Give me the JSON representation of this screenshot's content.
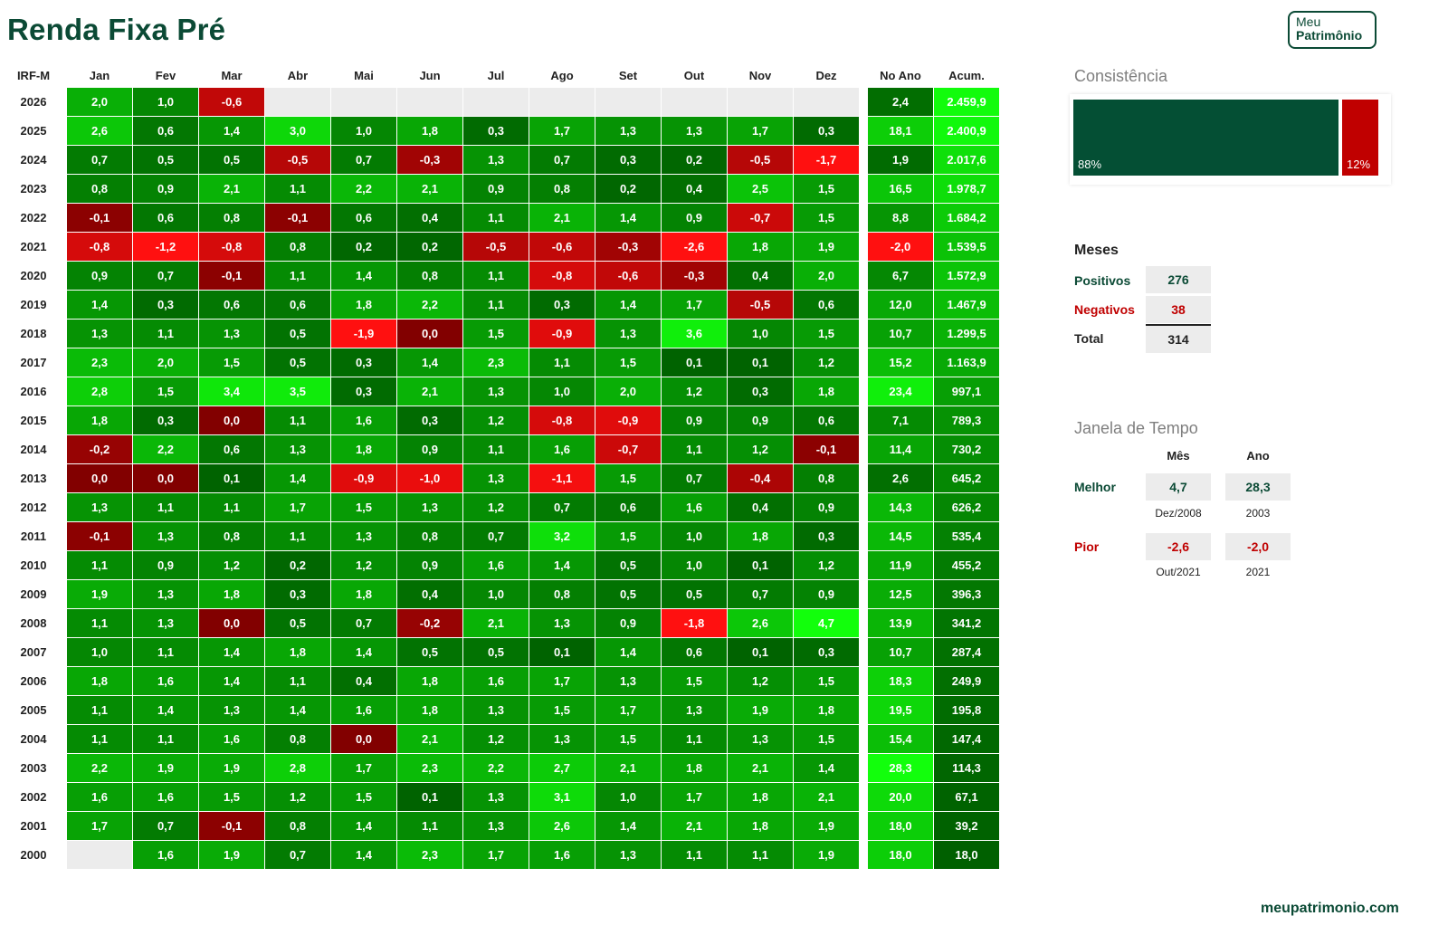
{
  "title": "Renda Fixa Pré",
  "logo": {
    "line1": "Meu",
    "line2": "Patrimônio"
  },
  "footer": "meupatrimonio.com",
  "colors": {
    "brand": "#0b4a35",
    "negative": "#c00000",
    "positive_dark": "#006100",
    "positive_bright": "#00ff00"
  },
  "chart_data": {
    "type": "heatmap",
    "corner_label": "IRF-M",
    "months": [
      "Jan",
      "Fev",
      "Mar",
      "Abr",
      "Mai",
      "Jun",
      "Jul",
      "Ago",
      "Set",
      "Out",
      "Nov",
      "Dez"
    ],
    "year_col_label": "No Ano",
    "acc_col_label": "Acum.",
    "rows": [
      {
        "year": "2026",
        "m": [
          "2,0",
          "1,0",
          "-0,6",
          "",
          "",
          "",
          "",
          "",
          "",
          "",
          "",
          ""
        ],
        "ano": "2,4",
        "acum": "2.459,9"
      },
      {
        "year": "2025",
        "m": [
          "2,6",
          "0,6",
          "1,4",
          "3,0",
          "1,0",
          "1,8",
          "0,3",
          "1,7",
          "1,3",
          "1,3",
          "1,7",
          "0,3"
        ],
        "ano": "18,1",
        "acum": "2.400,9"
      },
      {
        "year": "2024",
        "m": [
          "0,7",
          "0,5",
          "0,5",
          "-0,5",
          "0,7",
          "-0,3",
          "1,3",
          "0,7",
          "0,3",
          "0,2",
          "-0,5",
          "-1,7"
        ],
        "ano": "1,9",
        "acum": "2.017,6"
      },
      {
        "year": "2023",
        "m": [
          "0,8",
          "0,9",
          "2,1",
          "1,1",
          "2,2",
          "2,1",
          "0,9",
          "0,8",
          "0,2",
          "0,4",
          "2,5",
          "1,5"
        ],
        "ano": "16,5",
        "acum": "1.978,7"
      },
      {
        "year": "2022",
        "m": [
          "-0,1",
          "0,6",
          "0,8",
          "-0,1",
          "0,6",
          "0,4",
          "1,1",
          "2,1",
          "1,4",
          "0,9",
          "-0,7",
          "1,5"
        ],
        "ano": "8,8",
        "acum": "1.684,2"
      },
      {
        "year": "2021",
        "m": [
          "-0,8",
          "-1,2",
          "-0,8",
          "0,8",
          "0,2",
          "0,2",
          "-0,5",
          "-0,6",
          "-0,3",
          "-2,6",
          "1,8",
          "1,9"
        ],
        "ano": "-2,0",
        "acum": "1.539,5"
      },
      {
        "year": "2020",
        "m": [
          "0,9",
          "0,7",
          "-0,1",
          "1,1",
          "1,4",
          "0,8",
          "1,1",
          "-0,8",
          "-0,6",
          "-0,3",
          "0,4",
          "2,0"
        ],
        "ano": "6,7",
        "acum": "1.572,9"
      },
      {
        "year": "2019",
        "m": [
          "1,4",
          "0,3",
          "0,6",
          "0,6",
          "1,8",
          "2,2",
          "1,1",
          "0,3",
          "1,4",
          "1,7",
          "-0,5",
          "0,6"
        ],
        "ano": "12,0",
        "acum": "1.467,9"
      },
      {
        "year": "2018",
        "m": [
          "1,3",
          "1,1",
          "1,3",
          "0,5",
          "-1,9",
          "0,0",
          "1,5",
          "-0,9",
          "1,3",
          "3,6",
          "1,0",
          "1,5"
        ],
        "ano": "10,7",
        "acum": "1.299,5"
      },
      {
        "year": "2017",
        "m": [
          "2,3",
          "2,0",
          "1,5",
          "0,5",
          "0,3",
          "1,4",
          "2,3",
          "1,1",
          "1,5",
          "0,1",
          "0,1",
          "1,2"
        ],
        "ano": "15,2",
        "acum": "1.163,9"
      },
      {
        "year": "2016",
        "m": [
          "2,8",
          "1,5",
          "3,4",
          "3,5",
          "0,3",
          "2,1",
          "1,3",
          "1,0",
          "2,0",
          "1,2",
          "0,3",
          "1,8"
        ],
        "ano": "23,4",
        "acum": "997,1"
      },
      {
        "year": "2015",
        "m": [
          "1,8",
          "0,3",
          "0,0",
          "1,1",
          "1,6",
          "0,3",
          "1,2",
          "-0,8",
          "-0,9",
          "0,9",
          "0,9",
          "0,6"
        ],
        "ano": "7,1",
        "acum": "789,3"
      },
      {
        "year": "2014",
        "m": [
          "-0,2",
          "2,2",
          "0,6",
          "1,3",
          "1,8",
          "0,9",
          "1,1",
          "1,6",
          "-0,7",
          "1,1",
          "1,2",
          "-0,1"
        ],
        "ano": "11,4",
        "acum": "730,2"
      },
      {
        "year": "2013",
        "m": [
          "0,0",
          "0,0",
          "0,1",
          "1,4",
          "-0,9",
          "-1,0",
          "1,3",
          "-1,1",
          "1,5",
          "0,7",
          "-0,4",
          "0,8"
        ],
        "ano": "2,6",
        "acum": "645,2"
      },
      {
        "year": "2012",
        "m": [
          "1,3",
          "1,1",
          "1,1",
          "1,7",
          "1,5",
          "1,3",
          "1,2",
          "0,7",
          "0,6",
          "1,6",
          "0,4",
          "0,9"
        ],
        "ano": "14,3",
        "acum": "626,2"
      },
      {
        "year": "2011",
        "m": [
          "-0,1",
          "1,3",
          "0,8",
          "1,1",
          "1,3",
          "0,8",
          "0,7",
          "3,2",
          "1,5",
          "1,0",
          "1,8",
          "0,3"
        ],
        "ano": "14,5",
        "acum": "535,4"
      },
      {
        "year": "2010",
        "m": [
          "1,1",
          "0,9",
          "1,2",
          "0,2",
          "1,2",
          "0,9",
          "1,6",
          "1,4",
          "0,5",
          "1,0",
          "0,1",
          "1,2"
        ],
        "ano": "11,9",
        "acum": "455,2"
      },
      {
        "year": "2009",
        "m": [
          "1,9",
          "1,3",
          "1,8",
          "0,3",
          "1,8",
          "0,4",
          "1,0",
          "0,8",
          "0,5",
          "0,5",
          "0,7",
          "0,9"
        ],
        "ano": "12,5",
        "acum": "396,3"
      },
      {
        "year": "2008",
        "m": [
          "1,1",
          "1,3",
          "0,0",
          "0,5",
          "0,7",
          "-0,2",
          "2,1",
          "1,3",
          "0,9",
          "-1,8",
          "2,6",
          "4,7"
        ],
        "ano": "13,9",
        "acum": "341,2"
      },
      {
        "year": "2007",
        "m": [
          "1,0",
          "1,1",
          "1,4",
          "1,8",
          "1,4",
          "0,5",
          "0,5",
          "0,1",
          "1,4",
          "0,6",
          "0,1",
          "0,3"
        ],
        "ano": "10,7",
        "acum": "287,4"
      },
      {
        "year": "2006",
        "m": [
          "1,8",
          "1,6",
          "1,4",
          "1,1",
          "0,4",
          "1,8",
          "1,6",
          "1,7",
          "1,3",
          "1,5",
          "1,2",
          "1,5"
        ],
        "ano": "18,3",
        "acum": "249,9"
      },
      {
        "year": "2005",
        "m": [
          "1,1",
          "1,4",
          "1,3",
          "1,4",
          "1,6",
          "1,8",
          "1,3",
          "1,5",
          "1,7",
          "1,3",
          "1,9",
          "1,8"
        ],
        "ano": "19,5",
        "acum": "195,8"
      },
      {
        "year": "2004",
        "m": [
          "1,1",
          "1,1",
          "1,6",
          "0,8",
          "0,0",
          "2,1",
          "1,2",
          "1,3",
          "1,5",
          "1,1",
          "1,3",
          "1,5"
        ],
        "ano": "15,4",
        "acum": "147,4"
      },
      {
        "year": "2003",
        "m": [
          "2,2",
          "1,9",
          "1,9",
          "2,8",
          "1,7",
          "2,3",
          "2,2",
          "2,7",
          "2,1",
          "1,8",
          "2,1",
          "1,4"
        ],
        "ano": "28,3",
        "acum": "114,3"
      },
      {
        "year": "2002",
        "m": [
          "1,6",
          "1,6",
          "1,5",
          "1,2",
          "1,5",
          "0,1",
          "1,3",
          "3,1",
          "1,0",
          "1,7",
          "1,8",
          "2,1"
        ],
        "ano": "20,0",
        "acum": "67,1"
      },
      {
        "year": "2001",
        "m": [
          "1,7",
          "0,7",
          "-0,1",
          "0,8",
          "1,4",
          "1,1",
          "1,3",
          "2,6",
          "1,4",
          "2,1",
          "1,8",
          "1,9"
        ],
        "ano": "18,0",
        "acum": "39,2"
      },
      {
        "year": "2000",
        "m": [
          "",
          "1,6",
          "1,9",
          "0,7",
          "1,4",
          "2,3",
          "1,7",
          "1,6",
          "1,3",
          "1,1",
          "1,1",
          "1,9"
        ],
        "ano": "18,0",
        "acum": "18,0"
      }
    ]
  },
  "consistencia": {
    "title": "Consistência",
    "pos_pct": 88,
    "neg_pct": 12,
    "pos_label": "88%",
    "neg_label": "12%"
  },
  "meses": {
    "title": "Meses",
    "positivos_label": "Positivos",
    "positivos": "276",
    "negativos_label": "Negativos",
    "negativos": "38",
    "total_label": "Total",
    "total": "314"
  },
  "janela": {
    "title": "Janela de Tempo",
    "col_mes": "Mês",
    "col_ano": "Ano",
    "melhor_label": "Melhor",
    "melhor_mes": "4,7",
    "melhor_mes_sub": "Dez/2008",
    "melhor_ano": "28,3",
    "melhor_ano_sub": "2003",
    "pior_label": "Pior",
    "pior_mes": "-2,6",
    "pior_mes_sub": "Out/2021",
    "pior_ano": "-2,0",
    "pior_ano_sub": "2021"
  }
}
